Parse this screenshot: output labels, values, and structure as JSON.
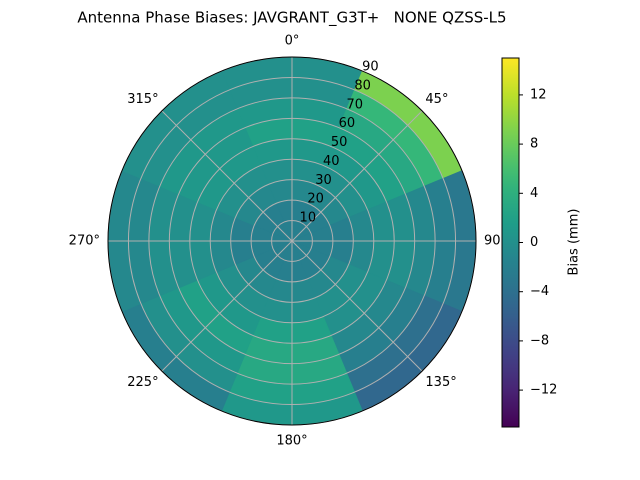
{
  "chart_data": {
    "type": "polar_contour",
    "title": "Antenna Phase Biases: JAVGRANT_G3T+   NONE QZSS-L5",
    "colormap": "viridis",
    "colorbar_label": "Bias (mm)",
    "clim": [
      -15,
      15
    ],
    "cticks": [
      {
        "value": -12,
        "label": "−12"
      },
      {
        "value": -8,
        "label": "−8"
      },
      {
        "value": -4,
        "label": "−4"
      },
      0,
      4,
      8,
      12
    ],
    "rlim": [
      0,
      90
    ],
    "rticks": [
      10,
      20,
      30,
      40,
      50,
      60,
      70,
      80,
      90
    ],
    "thetaticks": [
      {
        "value": 0,
        "label": "0°"
      },
      {
        "value": 45,
        "label": "45°"
      },
      {
        "value": 90,
        "label": "90"
      },
      {
        "value": 135,
        "label": "135°"
      },
      {
        "value": 180,
        "label": "180°"
      },
      {
        "value": 225,
        "label": "225°"
      },
      {
        "value": 270,
        "label": "270°"
      },
      {
        "value": 315,
        "label": "315°"
      }
    ],
    "grid": true,
    "azimuths": [
      0,
      45,
      90,
      135,
      180,
      225,
      270,
      315
    ],
    "zenith_edges": [
      0,
      10,
      20,
      30,
      40,
      50,
      60,
      70,
      80,
      90
    ],
    "values": [
      [
        -2,
        -2,
        -1,
        0,
        1,
        2,
        1,
        0,
        0
      ],
      [
        -2,
        -2,
        -1,
        0,
        1,
        2,
        3,
        5,
        9
      ],
      [
        -2,
        -2,
        -2,
        -1,
        0,
        0,
        -1,
        -2,
        -3
      ],
      [
        -2,
        -2,
        -1,
        0,
        0,
        -1,
        -2,
        -4,
        -5
      ],
      [
        -2,
        -2,
        -1,
        0,
        2,
        3,
        3,
        2,
        1
      ],
      [
        -2,
        -2,
        -1,
        0,
        1,
        2,
        1,
        0,
        -2
      ],
      [
        -2,
        -2,
        -2,
        -1,
        0,
        0,
        0,
        -1,
        -1
      ],
      [
        -2,
        -2,
        -1,
        0,
        1,
        1,
        1,
        0,
        0
      ]
    ]
  }
}
